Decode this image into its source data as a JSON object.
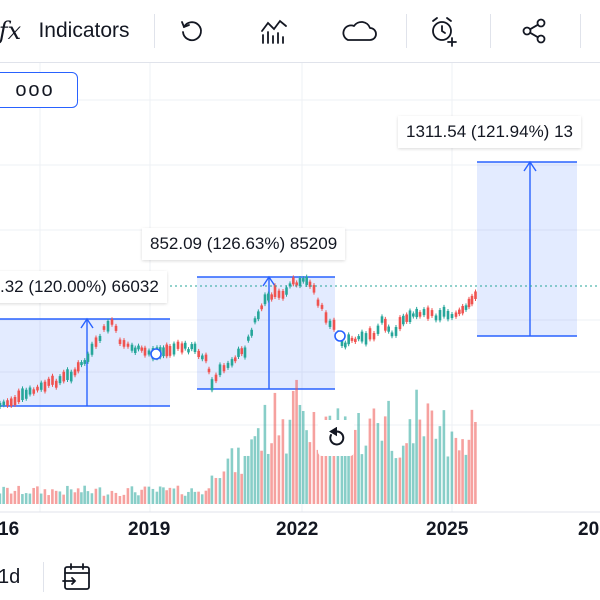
{
  "toolbar": {
    "formula_icon_text": "fx",
    "indicators_label": "Indicators"
  },
  "chart": {
    "more_label": "ooo",
    "measure_labels": [
      ".32 (120.00%) 66032",
      "852.09 (126.63%) 85209",
      "1311.54 (121.94%) 13"
    ],
    "x_ticks": [
      "16",
      "2019",
      "2022",
      "2025",
      "20"
    ],
    "measure_color": "#2962ff",
    "up_color": "#26a69a",
    "down_color": "#ef5350"
  },
  "bottom": {
    "interval_label": "1d"
  }
}
